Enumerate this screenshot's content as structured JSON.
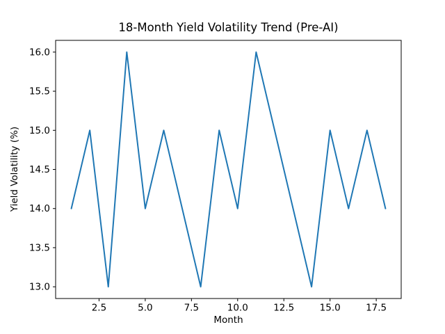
{
  "chart_data": {
    "type": "line",
    "title": "18-Month Yield Volatility Trend (Pre-AI)",
    "xlabel": "Month",
    "ylabel": "Yield Volatility (%)",
    "x": [
      1,
      2,
      3,
      4,
      5,
      6,
      7,
      8,
      9,
      10,
      11,
      12,
      13,
      14,
      15,
      16,
      17,
      18
    ],
    "y": [
      14,
      15,
      13,
      16,
      14,
      15,
      14,
      13,
      15,
      14,
      16,
      15,
      14,
      13,
      15,
      14,
      15,
      14
    ],
    "line_color": "#1f77b4",
    "background_color": "#ffffff",
    "axis_color": "#000000",
    "xlim": [
      0.15,
      18.85
    ],
    "ylim": [
      12.85,
      16.15
    ],
    "xticks": [
      2.5,
      5.0,
      7.5,
      10.0,
      12.5,
      15.0,
      17.5
    ],
    "xtick_labels": [
      "2.5",
      "5.0",
      "7.5",
      "10.0",
      "12.5",
      "15.0",
      "17.5"
    ],
    "yticks": [
      13.0,
      13.5,
      14.0,
      14.5,
      15.0,
      15.5,
      16.0
    ],
    "ytick_labels": [
      "13.0",
      "13.5",
      "14.0",
      "14.5",
      "15.0",
      "15.5",
      "16.0"
    ],
    "grid": false,
    "legend": "none",
    "markers": "none"
  }
}
